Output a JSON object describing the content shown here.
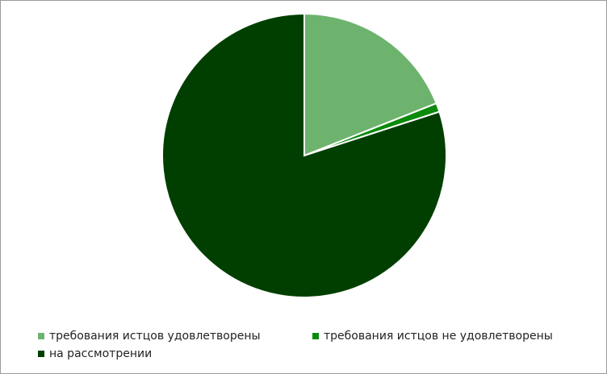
{
  "chart_data": {
    "type": "pie",
    "start_angle": "12 o'clock, clockwise",
    "slices": [
      {
        "label": "требования истцов удовлетворены",
        "value": 19,
        "color": "#6db36d"
      },
      {
        "label": "требования истцов не удовлетворены",
        "value": 1,
        "color": "#0b8a0b"
      },
      {
        "label": "на рассмотрении",
        "value": 80,
        "color": "#003f00"
      }
    ],
    "legend_position": "bottom"
  }
}
